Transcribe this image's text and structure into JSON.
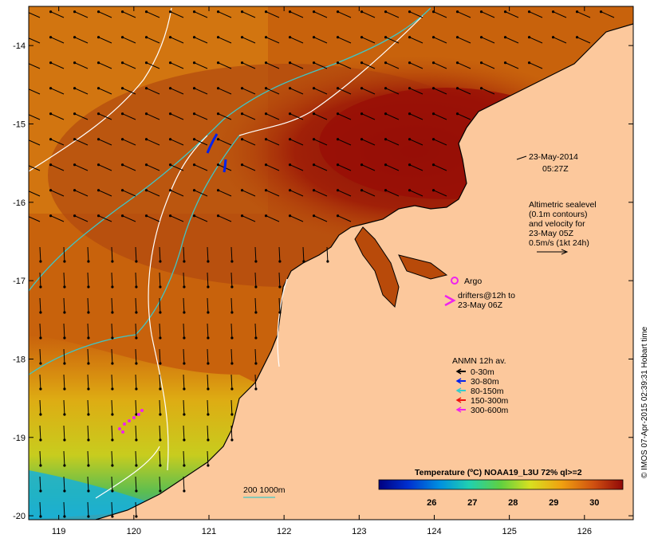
{
  "map": {
    "lon_ticks": [
      "119",
      "120",
      "121",
      "122",
      "123",
      "124",
      "125",
      "126"
    ],
    "lat_ticks": [
      "-14",
      "-15",
      "-16",
      "-17",
      "-18",
      "-19",
      "-20"
    ],
    "lon_range": [
      118.6,
      126.65
    ],
    "lat_range": [
      -20.05,
      -13.5
    ]
  },
  "annotations": {
    "date": "23-May-2014",
    "time": "05:27Z",
    "sealevel_lines": [
      "Altimetric sealevel",
      "(0.1m contours)",
      "and velocity for",
      "23-May 05Z",
      "0.5m/s (1kt 24h)"
    ],
    "argo_label": "Argo",
    "drifters_lines": [
      "drifters@12h to",
      "23-May 06Z"
    ],
    "anmn_title": "ANMN 12h av.",
    "anmn_items": [
      {
        "label": "0-30m",
        "color": "#000000"
      },
      {
        "label": "30-80m",
        "color": "#0022ee"
      },
      {
        "label": "80-150m",
        "color": "#33cccc"
      },
      {
        "label": "150-300m",
        "color": "#ee1111"
      },
      {
        "label": "300-600m",
        "color": "#ee22ee"
      }
    ],
    "isobath_label": "200  1000m",
    "colorbar_title": "Temperature (ºC) NOAA19_L3U 72% ql>=2",
    "colorbar_ticks": [
      "26",
      "27",
      "28",
      "29",
      "30"
    ],
    "credit": "© IMOS 07-Apr-2015 02:39:31 Hobart time"
  },
  "colors": {
    "land": "#fcc89c",
    "ocean_warm": "#b84a0a",
    "ocean_hot": "#9c1c08",
    "ocean_mid": "#d27a10",
    "ocean_cool": "#e8a812",
    "isobath_200": "#3fc6c6",
    "isobath_1000": "#ffffff",
    "argo": "#ee22ee"
  }
}
